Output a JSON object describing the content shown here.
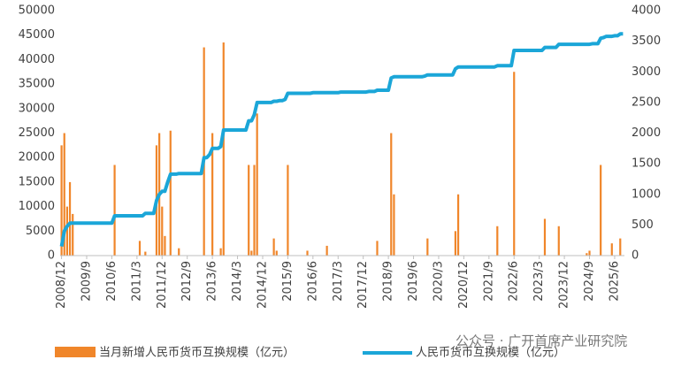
{
  "chart_data": {
    "type": "bar-line",
    "categories": [
      "2008/12",
      null,
      null,
      null,
      null,
      null,
      null,
      null,
      null,
      "2009/9",
      null,
      null,
      null,
      null,
      null,
      null,
      null,
      null,
      "2010/6",
      null,
      null,
      null,
      null,
      null,
      null,
      null,
      null,
      "2011/3",
      null,
      null,
      null,
      null,
      null,
      null,
      null,
      null,
      "2011/12",
      null,
      null,
      null,
      null,
      null,
      null,
      null,
      null,
      "2012/9",
      null,
      null,
      null,
      null,
      null,
      null,
      null,
      null,
      "2013/6",
      null,
      null,
      null,
      null,
      null,
      null,
      null,
      null,
      "2014/3",
      null,
      null,
      null,
      null,
      null,
      null,
      null,
      null,
      "2014/12",
      null,
      null,
      null,
      null,
      null,
      null,
      null,
      null,
      "2015/9",
      null,
      null,
      null,
      null,
      null,
      null,
      null,
      null,
      "2016/6",
      null,
      null,
      null,
      null,
      null,
      null,
      null,
      null,
      "2017/3",
      null,
      null,
      null,
      null,
      null,
      null,
      null,
      null,
      "2017/12",
      null,
      null,
      null,
      null,
      null,
      null,
      null,
      null,
      "2018/9",
      null,
      null,
      null,
      null,
      null,
      null,
      null,
      null,
      "2019/6",
      null,
      null,
      null,
      null,
      null,
      null,
      null,
      null,
      "2020/3",
      null,
      null,
      null,
      null,
      null,
      null,
      null,
      null,
      "2020/12",
      null,
      null,
      null,
      null,
      null,
      null,
      null,
      null,
      "2021/9",
      null,
      null,
      null,
      null,
      null,
      null,
      null,
      null,
      "2022/6",
      null,
      null,
      null,
      null,
      null,
      null,
      null,
      null,
      "2023/3",
      null,
      null,
      null,
      null,
      null,
      null,
      null,
      null,
      "2023/12",
      null,
      null,
      null,
      null,
      null,
      null,
      null,
      null,
      "2024/9",
      null,
      null,
      null,
      null,
      null,
      null,
      null,
      null,
      "2025/6",
      null,
      null,
      null
    ],
    "series": [
      {
        "name": "当月新增人民币货币互换规模（亿元）",
        "color": "#f0862a",
        "axis": "y",
        "values": [
          22500,
          25000,
          10000,
          15000,
          8500,
          0,
          0,
          0,
          0,
          0,
          0,
          0,
          0,
          0,
          0,
          0,
          0,
          0,
          0,
          18500,
          0,
          0,
          0,
          0,
          0,
          0,
          0,
          0,
          3000,
          0,
          800,
          0,
          0,
          0,
          22500,
          25000,
          10000,
          4000,
          0,
          25500,
          0,
          0,
          1500,
          0,
          0,
          0,
          0,
          0,
          0,
          0,
          0,
          42500,
          0,
          0,
          25000,
          0,
          0,
          1500,
          43500,
          0,
          0,
          0,
          0,
          0,
          0,
          0,
          0,
          18500,
          1000,
          18500,
          29000,
          0,
          0,
          0,
          0,
          0,
          3500,
          1000,
          0,
          0,
          0,
          18500,
          0,
          0,
          0,
          0,
          0,
          0,
          1000,
          0,
          0,
          0,
          0,
          0,
          0,
          2000,
          0,
          0,
          0,
          0,
          0,
          0,
          0,
          0,
          0,
          0,
          0,
          0,
          0,
          0,
          0,
          0,
          0,
          3000,
          0,
          0,
          0,
          0,
          25000,
          12500,
          0,
          0,
          0,
          0,
          0,
          0,
          0,
          0,
          0,
          0,
          0,
          3500,
          0,
          0,
          0,
          0,
          0,
          0,
          0,
          0,
          0,
          5000,
          12500,
          0,
          0,
          0,
          0,
          0,
          0,
          0,
          0,
          0,
          0,
          0,
          0,
          0,
          6000,
          0,
          0,
          0,
          0,
          0,
          37500,
          0,
          0,
          0,
          0,
          0,
          0,
          0,
          0,
          0,
          0,
          7500,
          0,
          0,
          0,
          0,
          6000,
          0,
          0,
          0,
          0,
          0,
          0,
          0,
          0,
          0,
          500,
          1000,
          0,
          0,
          0,
          18500,
          0,
          0,
          0,
          2500,
          0,
          0,
          3500,
          0
        ]
      },
      {
        "name": "人民币货币互换规模（亿元）",
        "color": "#1ba6d8",
        "axis": "y2",
        "values": [
          150,
          400,
          480,
          530,
          530,
          530,
          530,
          530,
          530,
          530,
          530,
          530,
          530,
          530,
          530,
          530,
          530,
          530,
          530,
          650,
          650,
          650,
          650,
          650,
          650,
          650,
          650,
          650,
          650,
          650,
          690,
          690,
          690,
          690,
          900,
          1000,
          1050,
          1050,
          1200,
          1330,
          1330,
          1330,
          1340,
          1340,
          1340,
          1340,
          1340,
          1340,
          1340,
          1340,
          1340,
          1600,
          1600,
          1650,
          1750,
          1750,
          1750,
          1780,
          2050,
          2050,
          2050,
          2050,
          2050,
          2050,
          2050,
          2050,
          2050,
          2200,
          2200,
          2300,
          2500,
          2500,
          2500,
          2500,
          2500,
          2500,
          2520,
          2520,
          2530,
          2530,
          2550,
          2650,
          2650,
          2650,
          2650,
          2650,
          2650,
          2650,
          2650,
          2650,
          2660,
          2660,
          2660,
          2660,
          2660,
          2660,
          2660,
          2660,
          2660,
          2660,
          2670,
          2670,
          2670,
          2670,
          2670,
          2670,
          2670,
          2670,
          2670,
          2670,
          2680,
          2680,
          2680,
          2700,
          2700,
          2700,
          2700,
          2700,
          2900,
          2920,
          2920,
          2920,
          2920,
          2920,
          2920,
          2920,
          2920,
          2920,
          2920,
          2920,
          2930,
          2950,
          2950,
          2950,
          2950,
          2950,
          2950,
          2950,
          2950,
          2950,
          2950,
          3050,
          3080,
          3080,
          3080,
          3080,
          3080,
          3080,
          3080,
          3080,
          3080,
          3080,
          3080,
          3080,
          3080,
          3080,
          3100,
          3100,
          3100,
          3100,
          3100,
          3100,
          3350,
          3350,
          3350,
          3350,
          3350,
          3350,
          3350,
          3350,
          3350,
          3350,
          3350,
          3400,
          3400,
          3400,
          3400,
          3400,
          3450,
          3450,
          3450,
          3450,
          3450,
          3450,
          3450,
          3450,
          3450,
          3450,
          3450,
          3450,
          3460,
          3460,
          3460,
          3550,
          3560,
          3580,
          3580,
          3580,
          3590,
          3590,
          3620,
          3620
        ]
      }
    ],
    "ylim": [
      0,
      50000
    ],
    "yticks": [
      0,
      5000,
      10000,
      15000,
      20000,
      25000,
      30000,
      35000,
      40000,
      45000,
      50000
    ],
    "y2lim": [
      0,
      4000
    ],
    "y2ticks": [
      0,
      500,
      1000,
      1500,
      2000,
      2500,
      3000,
      3500,
      4000
    ],
    "watermark": "公众号 · 广开首席产业研究院"
  }
}
